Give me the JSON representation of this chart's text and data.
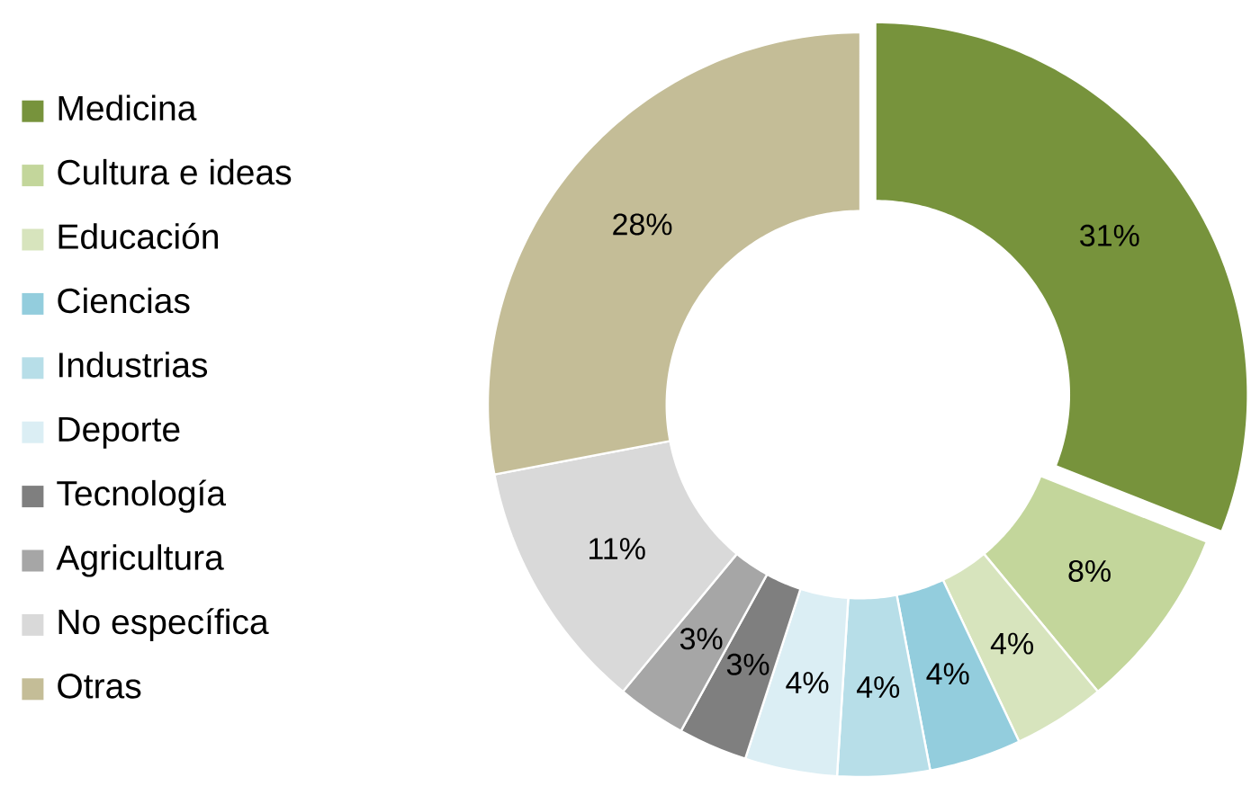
{
  "chart_data": {
    "type": "donut",
    "categories": [
      "Medicina",
      "Cultura e ideas",
      "Educación",
      "Ciencias",
      "Industrias",
      "Deporte",
      "Tecnología",
      "Agricultura",
      "No específica",
      "Otras"
    ],
    "values": [
      31,
      8,
      4,
      4,
      4,
      4,
      3,
      3,
      11,
      28
    ],
    "colors": [
      "#77933c",
      "#c3d69b",
      "#d7e4bd",
      "#93cddd",
      "#b7dee8",
      "#dbeef4",
      "#7f7f7f",
      "#a6a6a6",
      "#d9d9d9",
      "#c4bd97"
    ],
    "value_labels": [
      "31%",
      "8%",
      "4%",
      "4%",
      "4%",
      "4%",
      "3%",
      "3%",
      "11%",
      "28%"
    ],
    "legend": "left"
  }
}
